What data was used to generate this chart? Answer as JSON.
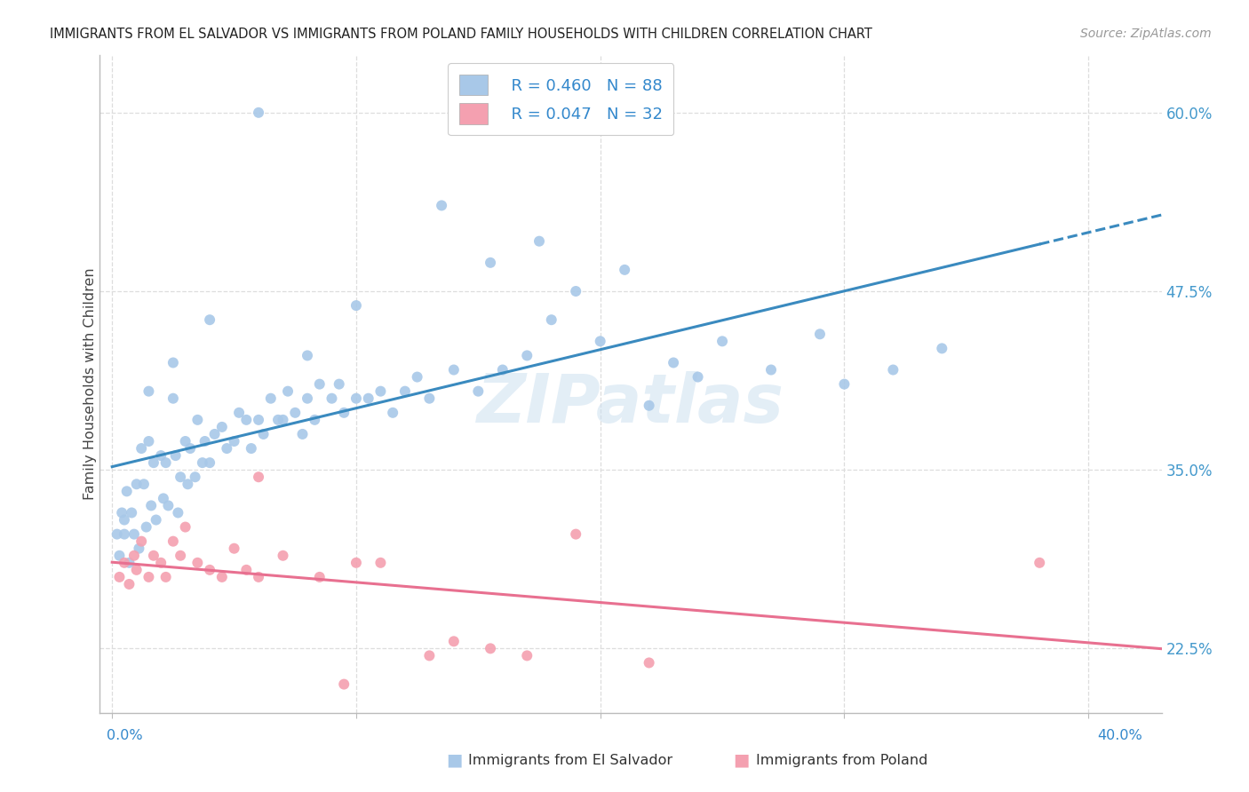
{
  "title": "IMMIGRANTS FROM EL SALVADOR VS IMMIGRANTS FROM POLAND FAMILY HOUSEHOLDS WITH CHILDREN CORRELATION CHART",
  "source": "Source: ZipAtlas.com",
  "ylabel": "Family Households with Children",
  "R_blue": 0.46,
  "N_blue": 88,
  "R_pink": 0.047,
  "N_pink": 32,
  "blue_color": "#a8c8e8",
  "pink_color": "#f4a0b0",
  "blue_line_color": "#3a8abf",
  "pink_line_color": "#e87090",
  "watermark": "ZIPatlas",
  "ytick_vals": [
    22.5,
    35.0,
    47.5,
    60.0
  ],
  "ytick_labels": [
    "22.5%",
    "35.0%",
    "47.5%",
    "60.0%"
  ],
  "xlim": [
    0,
    40
  ],
  "ylim": [
    18,
    64
  ],
  "blue_x": [
    0.2,
    0.3,
    0.4,
    0.5,
    0.6,
    0.7,
    0.8,
    0.9,
    1.0,
    1.1,
    1.2,
    1.3,
    1.4,
    1.5,
    1.6,
    1.7,
    1.8,
    2.0,
    2.1,
    2.2,
    2.3,
    2.5,
    2.6,
    2.7,
    2.8,
    3.0,
    3.1,
    3.2,
    3.4,
    3.5,
    3.7,
    3.8,
    4.0,
    4.2,
    4.5,
    4.7,
    5.0,
    5.2,
    5.5,
    5.7,
    6.0,
    6.2,
    6.5,
    6.8,
    7.0,
    7.2,
    7.5,
    7.8,
    8.0,
    8.3,
    8.5,
    9.0,
    9.3,
    9.5,
    10.0,
    10.5,
    11.0,
    11.5,
    12.0,
    12.5,
    13.0,
    14.0,
    15.0,
    16.0,
    17.0,
    18.0,
    19.0,
    20.0,
    21.0,
    22.0,
    23.0,
    24.0,
    25.0,
    27.0,
    29.0,
    30.0,
    32.0,
    34.0,
    6.0,
    13.5,
    17.5,
    15.5,
    10.0,
    8.0,
    4.0,
    2.5,
    1.5,
    0.5
  ],
  "blue_y": [
    30.5,
    29.0,
    32.0,
    30.5,
    33.5,
    28.5,
    32.0,
    30.5,
    34.0,
    29.5,
    36.5,
    34.0,
    31.0,
    37.0,
    32.5,
    35.5,
    31.5,
    36.0,
    33.0,
    35.5,
    32.5,
    40.0,
    36.0,
    32.0,
    34.5,
    37.0,
    34.0,
    36.5,
    34.5,
    38.5,
    35.5,
    37.0,
    35.5,
    37.5,
    38.0,
    36.5,
    37.0,
    39.0,
    38.5,
    36.5,
    38.5,
    37.5,
    40.0,
    38.5,
    38.5,
    40.5,
    39.0,
    37.5,
    40.0,
    38.5,
    41.0,
    40.0,
    41.0,
    39.0,
    40.0,
    40.0,
    40.5,
    39.0,
    40.5,
    41.5,
    40.0,
    42.0,
    40.5,
    42.0,
    43.0,
    45.5,
    47.5,
    44.0,
    49.0,
    39.5,
    42.5,
    41.5,
    44.0,
    42.0,
    44.5,
    41.0,
    42.0,
    43.5,
    60.0,
    53.5,
    51.0,
    49.5,
    46.5,
    43.0,
    45.5,
    42.5,
    40.5,
    31.5
  ],
  "pink_x": [
    0.3,
    0.5,
    0.7,
    0.9,
    1.0,
    1.2,
    1.5,
    1.7,
    2.0,
    2.2,
    2.5,
    2.8,
    3.0,
    3.5,
    4.0,
    4.5,
    5.0,
    5.5,
    6.0,
    7.0,
    8.5,
    9.5,
    11.0,
    14.0,
    15.5,
    17.0,
    10.0,
    22.0,
    38.0,
    6.0,
    13.0,
    19.0
  ],
  "pink_y": [
    27.5,
    28.5,
    27.0,
    29.0,
    28.0,
    30.0,
    27.5,
    29.0,
    28.5,
    27.5,
    30.0,
    29.0,
    31.0,
    28.5,
    28.0,
    27.5,
    29.5,
    28.0,
    27.5,
    29.0,
    27.5,
    20.0,
    28.5,
    23.0,
    22.5,
    22.0,
    28.5,
    21.5,
    28.5,
    34.5,
    22.0,
    30.5
  ]
}
